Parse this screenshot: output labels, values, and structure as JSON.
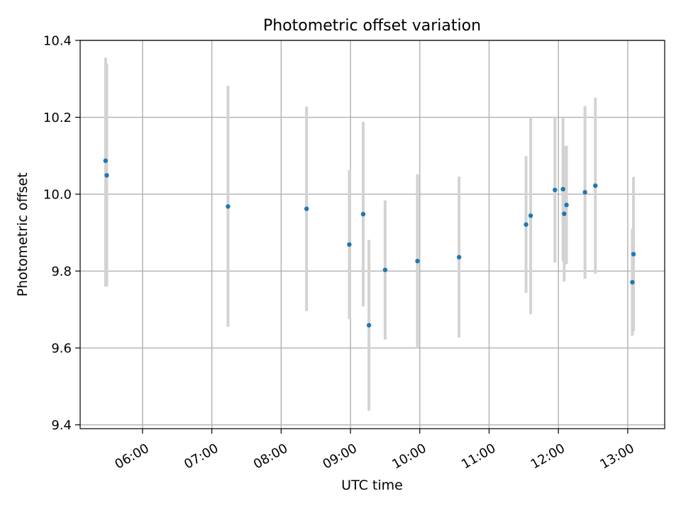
{
  "chart_data": {
    "type": "scatter",
    "title": "Photometric offset variation",
    "xlabel": "UTC time",
    "ylabel": "Photometric offset",
    "x_tick_labels": [
      "06:00",
      "07:00",
      "08:00",
      "09:00",
      "10:00",
      "11:00",
      "12:00",
      "13:00"
    ],
    "x_tick_times": [
      "06:00",
      "07:00",
      "08:00",
      "09:00",
      "10:00",
      "11:00",
      "12:00",
      "13:00"
    ],
    "y_ticks": [
      9.4,
      9.6,
      9.8,
      10.0,
      10.2,
      10.4
    ],
    "y_tick_labels": [
      "9.4",
      "9.6",
      "9.8",
      "10.0",
      "10.2",
      "10.4"
    ],
    "xlim": [
      "05:06",
      "13:32"
    ],
    "ylim": [
      9.39,
      10.4
    ],
    "grid": true,
    "colors": {
      "points": "#1f77b4",
      "errorbars": "#d3d3d3",
      "grid": "#b0b0b0"
    },
    "series": [
      {
        "points": [
          {
            "time": "05:28",
            "y": 10.087,
            "err_low": 9.76,
            "err_high": 10.355
          },
          {
            "time": "05:29",
            "y": 10.049,
            "err_low": 9.76,
            "err_high": 10.34
          },
          {
            "time": "07:14",
            "y": 9.968,
            "err_low": 9.655,
            "err_high": 10.282
          },
          {
            "time": "08:22",
            "y": 9.962,
            "err_low": 9.696,
            "err_high": 10.228
          },
          {
            "time": "08:59",
            "y": 9.869,
            "err_low": 9.675,
            "err_high": 10.063
          },
          {
            "time": "09:11",
            "y": 9.948,
            "err_low": 9.708,
            "err_high": 10.188
          },
          {
            "time": "09:16",
            "y": 9.659,
            "err_low": 9.437,
            "err_high": 9.881
          },
          {
            "time": "09:30",
            "y": 9.803,
            "err_low": 9.622,
            "err_high": 9.984
          },
          {
            "time": "09:58",
            "y": 9.826,
            "err_low": 9.6,
            "err_high": 10.052
          },
          {
            "time": "10:34",
            "y": 9.836,
            "err_low": 9.627,
            "err_high": 10.046
          },
          {
            "time": "11:32",
            "y": 9.921,
            "err_low": 9.743,
            "err_high": 10.099
          },
          {
            "time": "11:36",
            "y": 9.944,
            "err_low": 9.688,
            "err_high": 10.2
          },
          {
            "time": "11:57",
            "y": 10.011,
            "err_low": 9.822,
            "err_high": 10.2
          },
          {
            "time": "12:04",
            "y": 10.013,
            "err_low": 9.826,
            "err_high": 10.2
          },
          {
            "time": "12:05",
            "y": 9.949,
            "err_low": 9.773,
            "err_high": 10.125
          },
          {
            "time": "12:07",
            "y": 9.972,
            "err_low": 9.818,
            "err_high": 10.126
          },
          {
            "time": "12:23",
            "y": 10.005,
            "err_low": 9.78,
            "err_high": 10.229
          },
          {
            "time": "12:32",
            "y": 10.022,
            "err_low": 9.793,
            "err_high": 10.251
          },
          {
            "time": "13:05",
            "y": 9.844,
            "err_low": 9.643,
            "err_high": 10.045
          },
          {
            "time": "13:04",
            "y": 9.771,
            "err_low": 9.632,
            "err_high": 9.91
          }
        ]
      }
    ]
  }
}
